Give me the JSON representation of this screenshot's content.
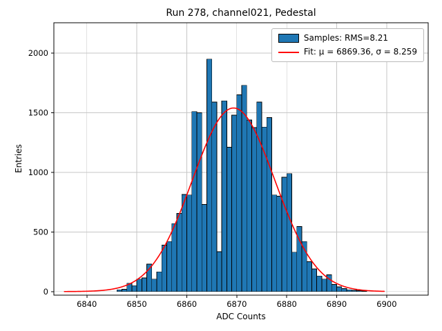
{
  "header": {
    "title": "Run 278, channel021, Pedestal"
  },
  "chart_data": {
    "type": "bar",
    "subtype": "histogram-with-gaussian-fit",
    "title": "Run 278, channel021, Pedestal",
    "xlabel": "ADC Counts",
    "ylabel": "Entries",
    "xlim": [
      6833.4,
      6908.3
    ],
    "ylim": [
      -30,
      2255
    ],
    "xticks": [
      6840,
      6850,
      6860,
      6870,
      6880,
      6890,
      6900
    ],
    "yticks": [
      0,
      500,
      1000,
      1500,
      2000
    ],
    "grid": true,
    "grid_color": "#c6c6c6",
    "frame_color": "#000000",
    "legend": {
      "position": "top-right",
      "entries": [
        {
          "label": "Samples: RMS=8.21",
          "type": "patch",
          "color": "#1f77b4",
          "edge": "#000000"
        },
        {
          "label": "Fit: μ = 6869.36, σ = 8.259",
          "type": "line",
          "color": "#ff0000"
        }
      ]
    },
    "histogram": {
      "bin_start": 6846,
      "bin_width": 1,
      "color": "#1f77b4",
      "edge_color": "#000000",
      "values": [
        15,
        20,
        70,
        50,
        105,
        115,
        230,
        105,
        165,
        390,
        420,
        570,
        655,
        815,
        810,
        1510,
        1500,
        730,
        1950,
        1590,
        335,
        1600,
        1210,
        1480,
        1650,
        1730,
        1440,
        1375,
        1590,
        1380,
        1460,
        810,
        800,
        960,
        990,
        330,
        545,
        420,
        250,
        190,
        130,
        105,
        140,
        60,
        40,
        25,
        15,
        10,
        8,
        5
      ]
    },
    "fit": {
      "mu": 6869.36,
      "sigma": 8.259,
      "amplitude": 1540,
      "color": "#ff0000",
      "x_range": [
        6835.5,
        6899.5
      ]
    }
  }
}
